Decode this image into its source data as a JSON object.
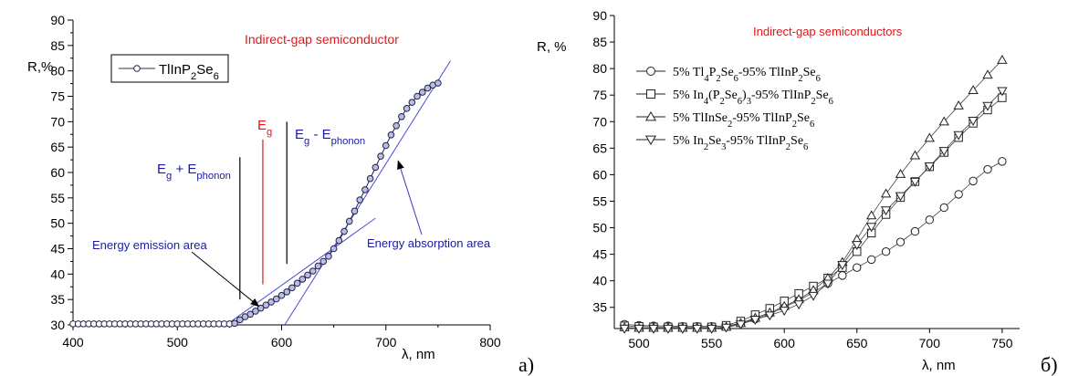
{
  "chart_data": [
    {
      "type": "scatter",
      "panel_label": "a)",
      "title": "Indirect-gap semiconductor",
      "xlabel": "λ, nm",
      "ylabel": "R,%",
      "xlim": [
        400,
        800
      ],
      "ylim": [
        30,
        90
      ],
      "xticks": [
        400,
        500,
        600,
        700,
        800
      ],
      "yticks": [
        30,
        35,
        40,
        45,
        50,
        55,
        60,
        65,
        70,
        75,
        80,
        85,
        90
      ],
      "grid": false,
      "legend_position": "top-left",
      "series": [
        {
          "name": "TlInP2Se6",
          "marker": "circle",
          "x": [
            400,
            405,
            410,
            415,
            420,
            425,
            430,
            435,
            440,
            445,
            450,
            455,
            460,
            465,
            470,
            475,
            480,
            485,
            490,
            495,
            500,
            505,
            510,
            515,
            520,
            525,
            530,
            535,
            540,
            545,
            550,
            555,
            560,
            565,
            570,
            575,
            580,
            585,
            590,
            595,
            600,
            605,
            610,
            615,
            620,
            625,
            630,
            635,
            640,
            645,
            650,
            655,
            660,
            665,
            670,
            675,
            680,
            685,
            690,
            695,
            700,
            705,
            710,
            715,
            720,
            725,
            730,
            735,
            740,
            745,
            750
          ],
          "y": [
            30.2,
            30.2,
            30.2,
            30.2,
            30.2,
            30.2,
            30.2,
            30.2,
            30.2,
            30.2,
            30.2,
            30.2,
            30.2,
            30.2,
            30.2,
            30.2,
            30.2,
            30.2,
            30.2,
            30.2,
            30.2,
            30.2,
            30.2,
            30.2,
            30.2,
            30.2,
            30.2,
            30.2,
            30.2,
            30.2,
            30.2,
            30.3,
            31.0,
            31.6,
            32.1,
            32.7,
            33.3,
            33.9,
            34.5,
            35.1,
            35.8,
            36.5,
            37.3,
            38.2,
            39.0,
            39.8,
            40.6,
            41.6,
            42.5,
            43.5,
            45.0,
            46.6,
            48.4,
            50.4,
            52.4,
            54.6,
            56.6,
            58.8,
            61.0,
            63.2,
            65.3,
            67.4,
            69.2,
            71.0,
            72.6,
            73.8,
            75.0,
            75.8,
            76.6,
            77.2,
            77.6
          ]
        }
      ],
      "fit_lines": [
        {
          "x": [
            547,
            690
          ],
          "y": [
            30,
            51
          ]
        },
        {
          "x": [
            603,
            762
          ],
          "y": [
            30,
            82
          ]
        }
      ],
      "markers": [
        {
          "label_main": "E",
          "label_sub": "g",
          "label_rest": " + E",
          "label_sub2": "phonon",
          "x": 560,
          "y1": 35,
          "y2": 63,
          "color": "#000000",
          "label_color": "#1a1aa6"
        },
        {
          "label_main": "E",
          "label_sub": "g",
          "label_rest": "",
          "label_sub2": "",
          "x": 582,
          "y1": 38,
          "y2": 66.5,
          "color": "#e01818",
          "label_color": "#e01818"
        },
        {
          "label_main": "E",
          "label_sub": "g",
          "label_rest": " - E",
          "label_sub2": "phonon",
          "x": 605,
          "y1": 42,
          "y2": 70,
          "color": "#000000",
          "label_color": "#1a1aa6"
        }
      ],
      "annotations": [
        {
          "text": "Energy emission area",
          "text_x": 455,
          "text_y": 44.5,
          "arrow_to_x": 580,
          "arrow_to_y": 34,
          "color": "#1a1aa6"
        },
        {
          "text": "Energy absorption area",
          "text_x": 680,
          "text_y": 44.5,
          "arrow_to_x": 710,
          "arrow_to_y": 63,
          "color": "#1a1aa6"
        }
      ],
      "colors": {
        "title": "#e01818",
        "fit_line": "#4a4ad8",
        "marker_fill": "#b8bde6"
      }
    },
    {
      "type": "scatter",
      "panel_label": "б)",
      "title": "Indirect-gap semiconductors",
      "xlabel": "λ, nm",
      "ylabel": "R, %",
      "xlim": [
        483,
        762
      ],
      "ylim": [
        31,
        90
      ],
      "xticks": [
        500,
        550,
        600,
        650,
        700,
        750
      ],
      "yticks": [
        35,
        40,
        45,
        50,
        55,
        60,
        65,
        70,
        75,
        80,
        85,
        90
      ],
      "grid": false,
      "legend_position": "top-left",
      "series": [
        {
          "name_parts": [
            [
              "5% Tl",
              ""
            ],
            [
              "4",
              "sub"
            ],
            [
              "P",
              ""
            ],
            [
              "2",
              "sub"
            ],
            [
              "Se",
              ""
            ],
            [
              "6",
              "sub"
            ],
            [
              "-95% TlInP",
              ""
            ],
            [
              "2",
              "sub"
            ],
            [
              "Se",
              ""
            ],
            [
              "6",
              "sub"
            ]
          ],
          "marker": "circle",
          "x": [
            490,
            500,
            510,
            520,
            530,
            540,
            550,
            560,
            570,
            580,
            590,
            600,
            610,
            620,
            630,
            640,
            650,
            660,
            670,
            680,
            690,
            700,
            710,
            720,
            730,
            740,
            750
          ],
          "y": [
            31.8,
            31.6,
            31.5,
            31.5,
            31.4,
            31.4,
            31.4,
            31.5,
            32.0,
            32.8,
            33.8,
            35.0,
            36.3,
            37.8,
            39.5,
            41.0,
            42.5,
            44.0,
            45.5,
            47.3,
            49.3,
            51.5,
            53.8,
            56.3,
            58.8,
            61.0,
            62.5
          ]
        },
        {
          "name_parts": [
            [
              "5% In",
              ""
            ],
            [
              "4",
              "sub"
            ],
            [
              "(P",
              ""
            ],
            [
              "2",
              "sub"
            ],
            [
              "Se",
              ""
            ],
            [
              "6",
              "sub"
            ],
            [
              ")",
              ""
            ],
            [
              "3",
              "sub"
            ],
            [
              "-95% TlInP",
              ""
            ],
            [
              "2",
              "sub"
            ],
            [
              "Se",
              ""
            ],
            [
              "6",
              "sub"
            ]
          ],
          "marker": "square",
          "x": [
            490,
            500,
            510,
            520,
            530,
            540,
            550,
            560,
            570,
            580,
            590,
            600,
            610,
            620,
            630,
            640,
            650,
            660,
            670,
            680,
            690,
            700,
            710,
            720,
            730,
            740,
            750
          ],
          "y": [
            31.5,
            31.4,
            31.3,
            31.3,
            31.3,
            31.3,
            31.3,
            31.6,
            32.4,
            33.6,
            34.8,
            36.2,
            37.6,
            39.0,
            40.5,
            42.5,
            45.5,
            49.0,
            52.5,
            55.7,
            58.7,
            61.5,
            64.2,
            67.0,
            69.7,
            72.2,
            74.5
          ]
        },
        {
          "name_parts": [
            [
              "5% TlInSe",
              ""
            ],
            [
              "2",
              "sub"
            ],
            [
              "-95% TlInP",
              ""
            ],
            [
              "2",
              "sub"
            ],
            [
              "Se",
              ""
            ],
            [
              "6",
              "sub"
            ]
          ],
          "marker": "triangle-up",
          "x": [
            490,
            500,
            510,
            520,
            530,
            540,
            550,
            560,
            570,
            580,
            590,
            600,
            610,
            620,
            630,
            640,
            650,
            660,
            670,
            680,
            690,
            700,
            710,
            720,
            730,
            740,
            750
          ],
          "y": [
            31.2,
            31.1,
            31.1,
            31.1,
            31.1,
            31.1,
            31.1,
            31.3,
            32.0,
            33.0,
            34.0,
            35.2,
            36.5,
            38.2,
            40.5,
            43.5,
            47.8,
            52.3,
            56.4,
            60.1,
            63.6,
            66.9,
            70.0,
            73.0,
            75.9,
            78.8,
            81.6
          ]
        },
        {
          "name_parts": [
            [
              "5% In",
              ""
            ],
            [
              "2",
              "sub"
            ],
            [
              "Se",
              ""
            ],
            [
              "3",
              "sub"
            ],
            [
              "-95% TlInP",
              ""
            ],
            [
              "2",
              "sub"
            ],
            [
              "Se",
              ""
            ],
            [
              "6",
              "sub"
            ]
          ],
          "marker": "triangle-down",
          "x": [
            490,
            500,
            510,
            520,
            530,
            540,
            550,
            560,
            570,
            580,
            590,
            600,
            610,
            620,
            630,
            640,
            650,
            660,
            670,
            680,
            690,
            700,
            710,
            720,
            730,
            740,
            750
          ],
          "y": [
            31.0,
            31.0,
            31.0,
            31.0,
            31.0,
            31.0,
            31.0,
            31.2,
            31.8,
            32.7,
            33.5,
            34.4,
            35.6,
            37.2,
            39.5,
            43.0,
            46.8,
            50.2,
            53.3,
            56.0,
            58.7,
            61.6,
            64.5,
            67.5,
            70.2,
            73.0,
            75.8
          ]
        }
      ],
      "colors": {
        "title": "#e01818",
        "marker_fill": "#ffffff"
      }
    }
  ]
}
